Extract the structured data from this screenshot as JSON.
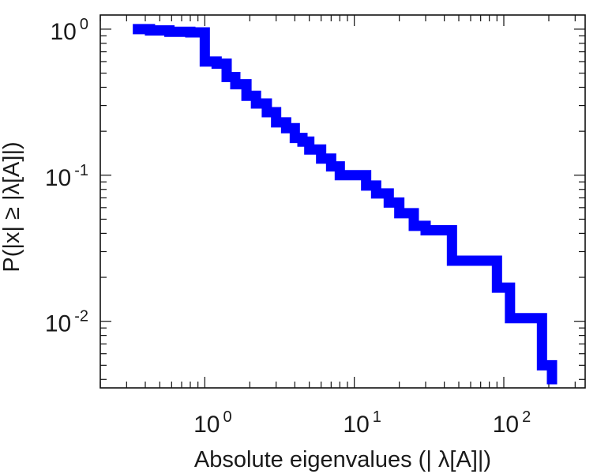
{
  "chart_data": {
    "type": "line",
    "subtype": "step-ccdf",
    "xlabel": "Absolute eigenvalues (|     λ[A]|)",
    "ylabel": "P(|x|  ≥ |λ[A]|)",
    "xscale": "log",
    "yscale": "log",
    "xlim": [
      0.2,
      350
    ],
    "ylim": [
      0.0035,
      1.25
    ],
    "x_ticks": [
      {
        "base": "10",
        "exp": "0",
        "value": 1
      },
      {
        "base": "10",
        "exp": "1",
        "value": 10
      },
      {
        "base": "10",
        "exp": "2",
        "value": 100
      }
    ],
    "y_ticks": [
      {
        "base": "10",
        "exp": "0",
        "value": 1
      },
      {
        "base": "10",
        "exp": "-1",
        "value": 0.1
      },
      {
        "base": "10",
        "exp": "-2",
        "value": 0.01
      }
    ],
    "grid": false,
    "legend": "none",
    "series": [
      {
        "color": "#0000ff",
        "x": [
          0.33,
          0.43,
          0.58,
          0.8,
          1.0,
          1.05,
          1.2,
          1.4,
          1.6,
          1.9,
          2.2,
          2.6,
          3.0,
          3.5,
          4.0,
          4.5,
          5.0,
          6.0,
          7.0,
          8.0,
          10.0,
          12.0,
          14.0,
          17.0,
          20.0,
          25.0,
          30.0,
          45.0,
          60.0,
          90.0,
          110.0,
          180.0,
          210.0
        ],
        "y": [
          1.0,
          0.98,
          0.96,
          0.95,
          0.6,
          0.6,
          0.58,
          0.47,
          0.42,
          0.35,
          0.31,
          0.27,
          0.23,
          0.21,
          0.18,
          0.17,
          0.15,
          0.13,
          0.115,
          0.1,
          0.1,
          0.085,
          0.075,
          0.065,
          0.055,
          0.045,
          0.042,
          0.026,
          0.026,
          0.017,
          0.0105,
          0.005,
          0.0037
        ]
      }
    ]
  }
}
